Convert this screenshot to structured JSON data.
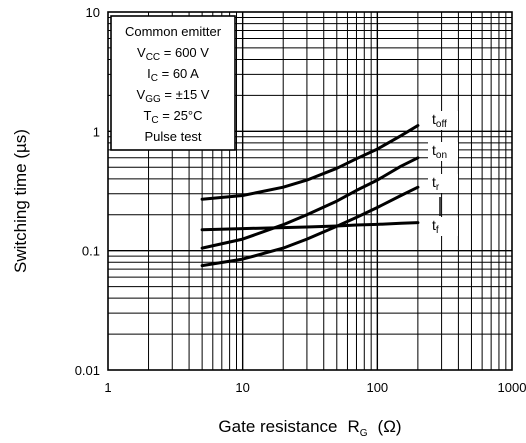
{
  "chart_data": {
    "type": "line",
    "x_scale": "log",
    "y_scale": "log",
    "xlim": [
      1,
      1000
    ],
    "ylim": [
      0.01,
      10
    ],
    "grid": true,
    "xlabel": "Gate resistance",
    "xlabel_symbol": "R",
    "xlabel_symbol_sub": "G",
    "xlabel_unit": "(Ω)",
    "ylabel": "Switching time   (µs)",
    "x_tick_labels": [
      "1",
      "10",
      "100",
      "1000"
    ],
    "y_tick_labels": [
      "0.01",
      "0.1",
      "1",
      "10"
    ],
    "x_ticks": [
      1,
      10,
      100,
      1000
    ],
    "y_ticks": [
      0.01,
      0.1,
      1,
      10
    ],
    "conditions": [
      {
        "main": "Common emitter",
        "sub": "",
        "rest": ""
      },
      {
        "main": "V",
        "sub": "CC",
        "rest": " = 600 V"
      },
      {
        "main": "I",
        "sub": "C",
        "rest": " = 60 A"
      },
      {
        "main": "V",
        "sub": "GG",
        "rest": " = ±15 V"
      },
      {
        "main": "T",
        "sub": "C",
        "rest": " = 25°C"
      },
      {
        "main": "Pulse test",
        "sub": "",
        "rest": ""
      }
    ],
    "series": [
      {
        "name": "toff",
        "label_main": "t",
        "label_sub": "off",
        "x": [
          5,
          10,
          20,
          30,
          50,
          70,
          100,
          150,
          200
        ],
        "y": [
          0.27,
          0.29,
          0.34,
          0.39,
          0.49,
          0.59,
          0.71,
          0.92,
          1.12
        ]
      },
      {
        "name": "ton",
        "label_main": "t",
        "label_sub": "on",
        "x": [
          5,
          10,
          20,
          30,
          50,
          70,
          100,
          150,
          200
        ],
        "y": [
          0.105,
          0.125,
          0.165,
          0.2,
          0.26,
          0.32,
          0.39,
          0.51,
          0.6
        ]
      },
      {
        "name": "tr",
        "label_main": "t",
        "label_sub": "r",
        "x": [
          5,
          10,
          20,
          30,
          50,
          70,
          100,
          150,
          200
        ],
        "y": [
          0.075,
          0.085,
          0.105,
          0.125,
          0.16,
          0.19,
          0.23,
          0.29,
          0.34
        ]
      },
      {
        "name": "tf",
        "label_main": "t",
        "label_sub": "f",
        "x": [
          5,
          10,
          20,
          30,
          50,
          70,
          100,
          150,
          200
        ],
        "y": [
          0.15,
          0.153,
          0.156,
          0.158,
          0.161,
          0.164,
          0.166,
          0.17,
          0.172
        ]
      }
    ]
  }
}
